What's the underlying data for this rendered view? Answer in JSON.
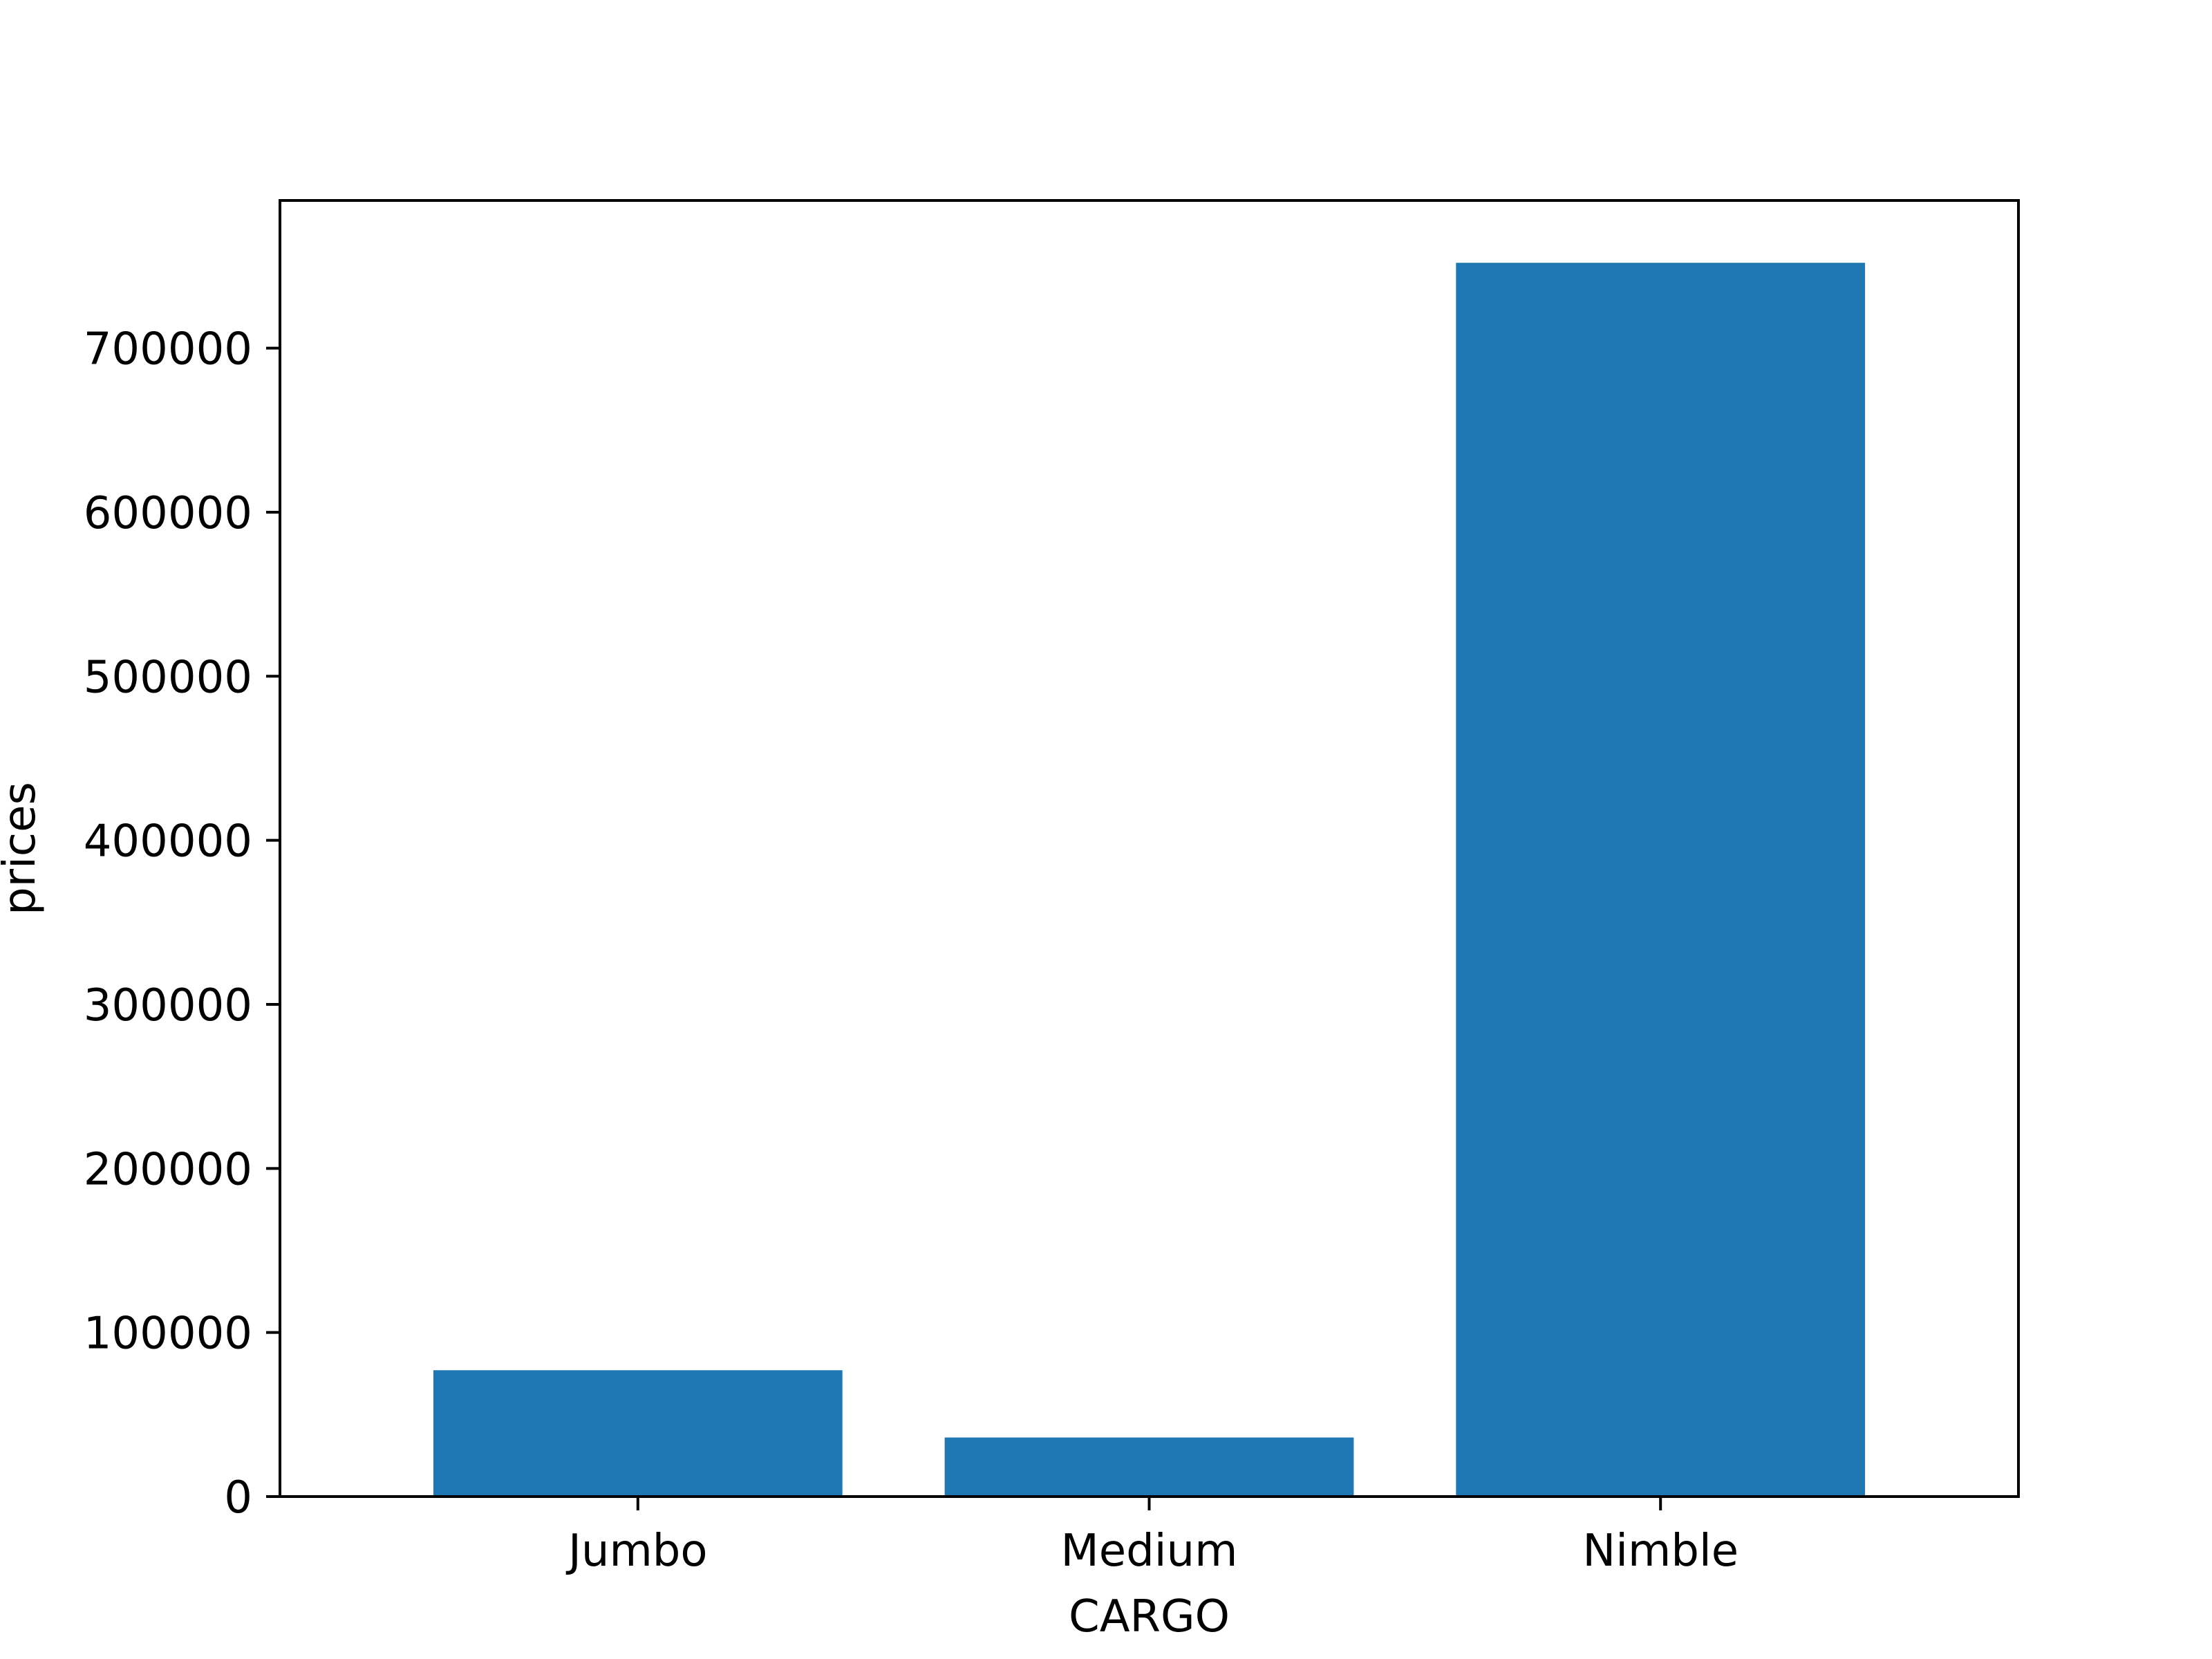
{
  "chart_data": {
    "type": "bar",
    "categories": [
      "Jumbo",
      "Medium",
      "Nimble"
    ],
    "values": [
      77000,
      36000,
      752000
    ],
    "title": "",
    "xlabel": "CARGO",
    "ylabel": "prices",
    "ylim": [
      0,
      790000
    ],
    "yticks": [
      0,
      100000,
      200000,
      300000,
      400000,
      500000,
      600000,
      700000
    ],
    "ytick_labels": [
      "0",
      "100000",
      "200000",
      "300000",
      "400000",
      "500000",
      "600000",
      "700000"
    ],
    "grid": false,
    "legend": "none",
    "bar_color": "#1f77b4"
  }
}
